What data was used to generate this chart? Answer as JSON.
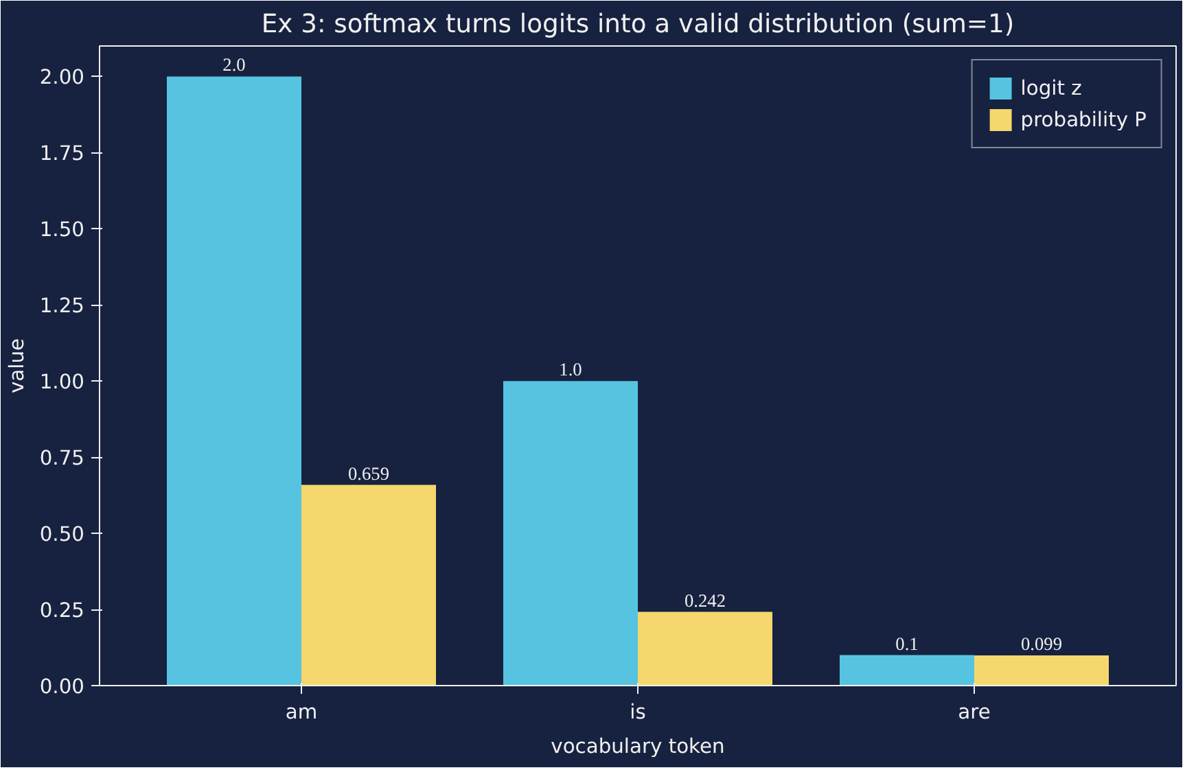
{
  "chart_data": {
    "type": "bar",
    "title": "Ex 3: softmax turns logits into a valid distribution (sum=1)",
    "xlabel": "vocabulary token",
    "ylabel": "value",
    "categories": [
      "am",
      "is",
      "are"
    ],
    "series": [
      {
        "name": "logit z",
        "color": "#56c4e0",
        "values": [
          2.0,
          1.0,
          0.1
        ],
        "value_labels": [
          "2.0",
          "1.0",
          "0.1"
        ]
      },
      {
        "name": "probability P",
        "color": "#f5d76e",
        "values": [
          0.659,
          0.242,
          0.099
        ],
        "value_labels": [
          "0.659",
          "0.242",
          "0.099"
        ]
      }
    ],
    "ylim": [
      0,
      2.1
    ],
    "yticks": [
      {
        "value": 0,
        "label": "0.00"
      },
      {
        "value": 0.25,
        "label": "0.25"
      },
      {
        "value": 0.5,
        "label": "0.50"
      },
      {
        "value": 0.75,
        "label": "0.75"
      },
      {
        "value": 1.0,
        "label": "1.00"
      },
      {
        "value": 1.25,
        "label": "1.25"
      },
      {
        "value": 1.5,
        "label": "1.50"
      },
      {
        "value": 1.75,
        "label": "1.75"
      },
      {
        "value": 2.0,
        "label": "2.00"
      }
    ],
    "grid": false,
    "legend": "top right"
  }
}
